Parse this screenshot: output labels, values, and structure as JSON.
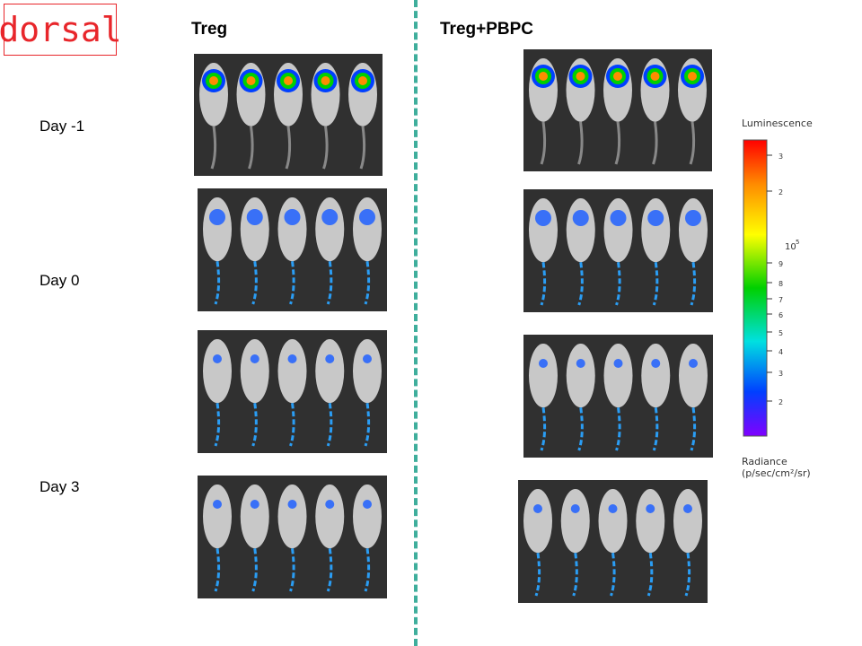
{
  "view_label": "dorsal",
  "groups": [
    {
      "title": "Treg"
    },
    {
      "title": "Treg+PBPC"
    }
  ],
  "days": [
    {
      "label": "Day -1"
    },
    {
      "label": "Day 0"
    },
    {
      "label": "Day 3"
    }
  ],
  "legend": {
    "title": "Luminescence",
    "scale_exponent_label": "10",
    "scale_exponent": "5",
    "tick_labels": [
      "3",
      "2",
      "9",
      "8",
      "7",
      "6",
      "5",
      "4",
      "3",
      "2"
    ],
    "unit_line1": "Radiance",
    "unit_line2": "(p/sec/cm²/sr)",
    "colors": [
      "#ff0000",
      "#ff8c00",
      "#ffff00",
      "#00d000",
      "#00e0e0",
      "#0040ff",
      "#8000ff"
    ]
  },
  "panels_description_colors": {
    "background": "#303030",
    "mouse_body": "#c8c8c8"
  }
}
